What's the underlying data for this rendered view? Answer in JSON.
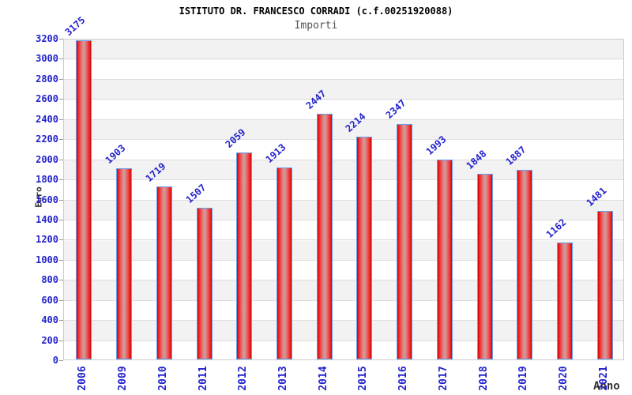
{
  "chart_data": {
    "type": "bar",
    "title": "ISTITUTO DR. FRANCESCO CORRADI (c.f.00251920088)",
    "subtitle": "Importi",
    "xlabel": "Anno",
    "ylabel": "Euro",
    "categories": [
      "2006",
      "2009",
      "2010",
      "2011",
      "2012",
      "2013",
      "2014",
      "2015",
      "2016",
      "2017",
      "2018",
      "2019",
      "2020",
      "2021"
    ],
    "values": [
      3175,
      1903,
      1719,
      1507,
      2059,
      1913,
      2447,
      2214,
      2347,
      1993,
      1848,
      1887,
      1162,
      1481
    ],
    "ylim": [
      0,
      3200
    ],
    "ytick_step": 200,
    "legend": "none",
    "grid": "horizontal-alternating-bands",
    "colors": {
      "bar_edge": "#d40404",
      "bar_center": "#cfa0a0",
      "bar_border": "#64a0f0",
      "tick_label_blue": "#2222cc",
      "band_gray": "#f2f2f2",
      "band_white": "#ffffff",
      "gridline": "#dedede",
      "plot_border": "#cccccc",
      "title_color": "#000000",
      "subtitle_color": "#555555",
      "axis_title_color": "#333333"
    }
  }
}
